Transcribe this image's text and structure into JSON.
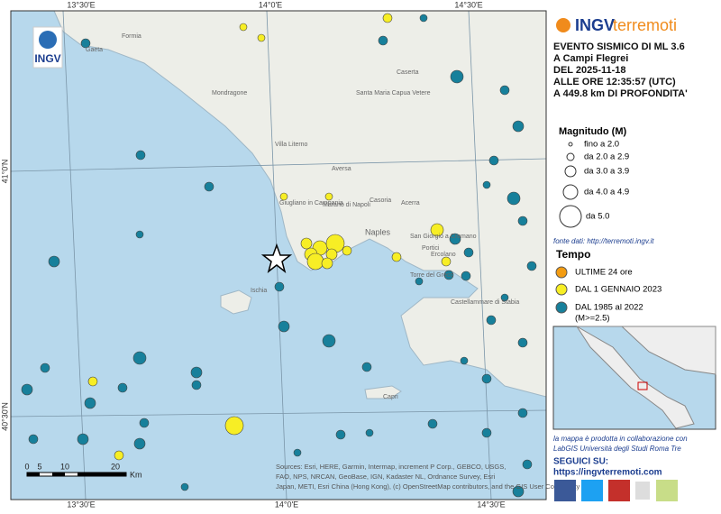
{
  "map": {
    "coords": {
      "top": [
        "13°30'E",
        "14°0'E",
        "14°30'E"
      ],
      "bottom": [
        "13°30'E",
        "14°0'E",
        "14°30'E"
      ],
      "left": [
        "41°0'N",
        "40°30'N"
      ]
    },
    "places": [
      "Gaeta",
      "Formia",
      "Mondragone",
      "Santa Maria Capua Vetere",
      "Caserta",
      "Villa Literno",
      "Aversa",
      "Giugliano in Campania",
      "Marano di Napoli",
      "Naples",
      "Casoria",
      "Acerra",
      "San Giorgio a Cremano",
      "Portici",
      "Ercolano",
      "Torre del Greco",
      "Castellammare di Stabia",
      "Ischia",
      "Capri"
    ],
    "scale": {
      "ticks": [
        "0",
        "5",
        "10",
        "20"
      ],
      "unit": "Km"
    },
    "attribution": "Sources: Esri, HERE, Garmin, Intermap, increment P Corp., GEBCO, USGS, FAO, NPS, NRCAN, GeoBase, IGN, Kadaster NL, Ordnance Survey, Esri Japan, METI, Esri China (Hong Kong), (c) OpenStreetMap contributors, and the GIS User Community",
    "logo": "INGV"
  },
  "panel": {
    "brand": [
      "INGV",
      "terremoti"
    ],
    "event": [
      "EVENTO SISMICO DI ML 3.6",
      "A Campi Flegrei",
      "DEL 2025-11-18",
      "ALLE ORE 12:35:57 (UTC)",
      "A 449.8 km DI PROFONDITA'"
    ],
    "magnitude": {
      "title": "Magnitudo (M)",
      "items": [
        "fino a 2.0",
        "da 2.0 a 2.9",
        "da 3.0 a 3.9",
        "da 4.0 a 4.9",
        "da 5.0"
      ]
    },
    "source": "fonte dati: http://terremoti.ingv.it",
    "time": {
      "title": "Tempo",
      "items": [
        "ULTIME 24 ore",
        "DAL 1 GENNAIO 2023",
        "DAL 1985 al 2022",
        "(M>=2.5)"
      ]
    },
    "credits": [
      "la mappa è prodotta in collaborazione con",
      "LabGIS Università degli Studi Roma Tre"
    ],
    "follow": {
      "title": "SEGUICI SU:",
      "url": "https://ingvterremoti.com"
    }
  }
}
